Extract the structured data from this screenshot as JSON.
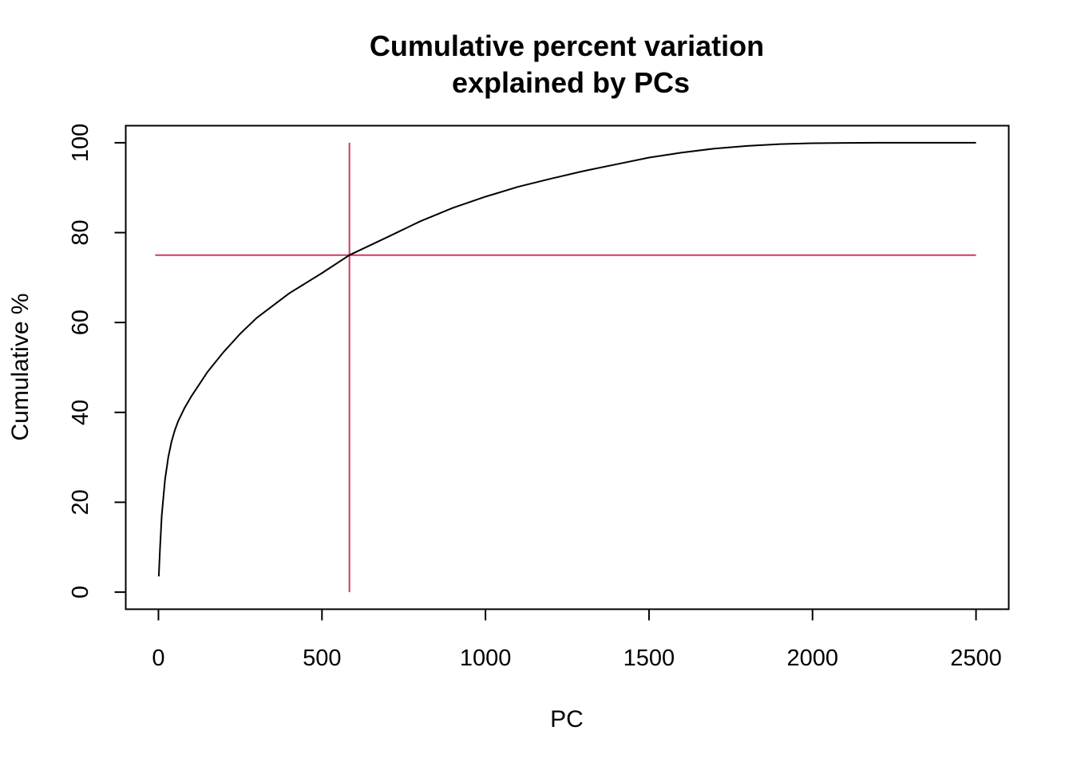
{
  "chart_data": {
    "type": "line",
    "title": [
      "Cumulative percent variation",
      "explained by PCs"
    ],
    "xlabel": "PC",
    "ylabel": "Cumulative %",
    "xlim": [
      -100,
      2600
    ],
    "ylim": [
      -3.8,
      103.8
    ],
    "x_ticks": [
      0,
      500,
      1000,
      1500,
      2000,
      2500
    ],
    "y_ticks": [
      0,
      20,
      40,
      60,
      80,
      100
    ],
    "x_tick_labels": [
      "0",
      "500",
      "1000",
      "1500",
      "2000",
      "2500"
    ],
    "y_tick_labels": [
      "0",
      "20",
      "40",
      "60",
      "80",
      "100"
    ],
    "grid": false,
    "series": [
      {
        "color": "#000000",
        "x": [
          1,
          5,
          10,
          20,
          30,
          40,
          50,
          60,
          80,
          100,
          150,
          200,
          250,
          300,
          400,
          500,
          584,
          700,
          800,
          900,
          1000,
          1100,
          1200,
          1300,
          1400,
          1500,
          1600,
          1700,
          1800,
          1900,
          2000,
          2100,
          2200,
          2300,
          2400,
          2500
        ],
        "y": [
          3.5,
          10,
          17,
          25,
          30,
          33.5,
          36,
          38,
          41,
          43.5,
          49,
          53.5,
          57.5,
          61,
          66.5,
          71,
          75,
          79,
          82.5,
          85.5,
          88,
          90.2,
          92,
          93.7,
          95.2,
          96.7,
          97.8,
          98.7,
          99.3,
          99.7,
          99.9,
          99.95,
          100,
          100,
          100,
          100
        ]
      }
    ],
    "reference_lines": [
      {
        "orientation": "horizontal",
        "y": 75,
        "x_from": -10,
        "x_to": 2500,
        "color": "#cd3d5f"
      },
      {
        "orientation": "vertical",
        "x": 584,
        "y_from": 0,
        "y_to": 100,
        "color": "#cd3d5f"
      }
    ]
  }
}
